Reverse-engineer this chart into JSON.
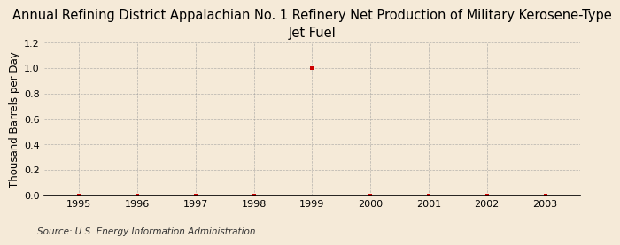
{
  "title": "Annual Refining District Appalachian No. 1 Refinery Net Production of Military Kerosene-Type\nJet Fuel",
  "ylabel": "Thousand Barrels per Day",
  "source": "Source: U.S. Energy Information Administration",
  "x_values": [
    1995,
    1996,
    1997,
    1998,
    1999,
    2000,
    2001,
    2002,
    2003
  ],
  "y_values": [
    0.0,
    0.0,
    0.0,
    0.0,
    1.0,
    0.0,
    0.0,
    0.0,
    0.0
  ],
  "xlim": [
    1994.4,
    2003.6
  ],
  "ylim": [
    0.0,
    1.2
  ],
  "yticks": [
    0.0,
    0.2,
    0.4,
    0.6,
    0.8,
    1.0,
    1.2
  ],
  "xticks": [
    1995,
    1996,
    1997,
    1998,
    1999,
    2000,
    2001,
    2002,
    2003
  ],
  "marker_color": "#cc0000",
  "background_color": "#f5ead8",
  "grid_color": "#999999",
  "title_fontsize": 10.5,
  "label_fontsize": 8.5,
  "tick_fontsize": 8,
  "source_fontsize": 7.5
}
